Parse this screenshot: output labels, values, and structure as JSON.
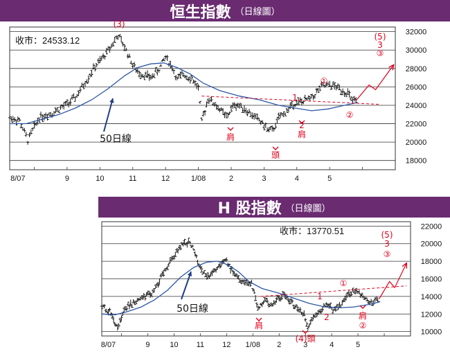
{
  "chart_data": [
    {
      "type": "ohlc",
      "title": "恒生指數",
      "subtitle": "（日線圖）",
      "close_label": "收市：24533.12",
      "ylim": [
        17000,
        32500
      ],
      "yticks": [
        18000,
        20000,
        22000,
        24000,
        26000,
        28000,
        30000,
        32000
      ],
      "xlabels": [
        {
          "label": "8/07",
          "m": 0.25
        },
        {
          "label": "9",
          "m": 1.75
        },
        {
          "label": "10",
          "m": 2.75
        },
        {
          "label": "11",
          "m": 3.75
        },
        {
          "label": "12",
          "m": 4.75
        },
        {
          "label": "1/08",
          "m": 5.75
        },
        {
          "label": "2",
          "m": 6.75
        },
        {
          "label": "3",
          "m": 7.75
        },
        {
          "label": "4",
          "m": 8.75
        },
        {
          "label": "5",
          "m": 9.75
        }
      ],
      "price": [
        [
          0,
          22700
        ],
        [
          0.3,
          22300
        ],
        [
          0.55,
          20200
        ],
        [
          0.9,
          22700
        ],
        [
          1.3,
          23200
        ],
        [
          1.7,
          24000
        ],
        [
          2.0,
          24800
        ],
        [
          2.3,
          26500
        ],
        [
          2.6,
          28200
        ],
        [
          2.85,
          29200
        ],
        [
          3.1,
          30500
        ],
        [
          3.3,
          31600
        ],
        [
          3.55,
          30000
        ],
        [
          3.75,
          28400
        ],
        [
          3.9,
          27600
        ],
        [
          4.1,
          27300
        ],
        [
          4.3,
          27000
        ],
        [
          4.55,
          27900
        ],
        [
          4.75,
          29300
        ],
        [
          4.95,
          28100
        ],
        [
          5.1,
          26800
        ],
        [
          5.3,
          27400
        ],
        [
          5.55,
          26900
        ],
        [
          5.75,
          25900
        ],
        [
          5.85,
          22200
        ],
        [
          6.05,
          24800
        ],
        [
          6.4,
          23600
        ],
        [
          6.6,
          22700
        ],
        [
          6.85,
          24100
        ],
        [
          7.1,
          23800
        ],
        [
          7.4,
          22900
        ],
        [
          7.6,
          22400
        ],
        [
          7.85,
          21400
        ],
        [
          8.0,
          21200
        ],
        [
          8.2,
          22600
        ],
        [
          8.45,
          23400
        ],
        [
          8.65,
          24200
        ],
        [
          8.9,
          24400
        ],
        [
          9.2,
          24800
        ],
        [
          9.5,
          26000
        ],
        [
          9.75,
          26200
        ],
        [
          10.0,
          25900
        ],
        [
          10.3,
          25300
        ],
        [
          10.45,
          24400
        ],
        [
          10.6,
          24450
        ]
      ],
      "ma50": [
        [
          0,
          22000
        ],
        [
          0.5,
          22000
        ],
        [
          1,
          22500
        ],
        [
          1.5,
          23000
        ],
        [
          2,
          23700
        ],
        [
          2.5,
          24600
        ],
        [
          3,
          25800
        ],
        [
          3.5,
          27200
        ],
        [
          3.9,
          28100
        ],
        [
          4.3,
          28500
        ],
        [
          4.7,
          28600
        ],
        [
          5.1,
          28100
        ],
        [
          5.5,
          27400
        ],
        [
          5.9,
          26400
        ],
        [
          6.4,
          25600
        ],
        [
          7,
          25000
        ],
        [
          7.6,
          24600
        ],
        [
          8.2,
          24000
        ],
        [
          8.7,
          23700
        ],
        [
          9.2,
          23400
        ],
        [
          9.7,
          23600
        ],
        [
          10.2,
          24000
        ],
        [
          10.6,
          24300
        ]
      ],
      "neckline": {
        "from": [
          5.85,
          25000
        ],
        "to": [
          11.3,
          24100
        ]
      },
      "projection": [
        [
          10.55,
          24500
        ],
        [
          10.95,
          26200
        ],
        [
          11.15,
          25700
        ],
        [
          11.7,
          28400
        ]
      ],
      "ma_label": "50日線",
      "labels": {
        "peak3": "(3)",
        "wave5": "(5)",
        "wave5_sub": "3",
        "circle3": "③",
        "circle1": "①",
        "circle2": "②",
        "wave1": "1",
        "wave2": "2",
        "shoulder_left": "肩",
        "shoulder_right": "肩",
        "head": "頭"
      }
    },
    {
      "type": "ohlc",
      "title": "H 股指數",
      "subtitle": "（日線圖）",
      "close_label": "收市：13770.51",
      "ylim": [
        9500,
        22500
      ],
      "yticks": [
        10000,
        12000,
        14000,
        16000,
        18000,
        20000,
        22000
      ],
      "xlabels": [
        {
          "label": "8/07",
          "m": 0.25
        },
        {
          "label": "9",
          "m": 1.75
        },
        {
          "label": "10",
          "m": 2.75
        },
        {
          "label": "11",
          "m": 3.75
        },
        {
          "label": "12",
          "m": 4.75
        },
        {
          "label": "1/08",
          "m": 5.75
        },
        {
          "label": "2",
          "m": 6.75
        },
        {
          "label": "3",
          "m": 7.75
        },
        {
          "label": "4",
          "m": 8.75
        },
        {
          "label": "5",
          "m": 9.75
        }
      ],
      "price": [
        [
          0,
          12800
        ],
        [
          0.3,
          12300
        ],
        [
          0.6,
          10400
        ],
        [
          0.9,
          12700
        ],
        [
          1.3,
          13500
        ],
        [
          1.7,
          14000
        ],
        [
          2.0,
          14600
        ],
        [
          2.3,
          16500
        ],
        [
          2.6,
          17900
        ],
        [
          2.85,
          19200
        ],
        [
          3.1,
          20000
        ],
        [
          3.35,
          20200
        ],
        [
          3.6,
          18500
        ],
        [
          3.85,
          16700
        ],
        [
          4.05,
          16200
        ],
        [
          4.3,
          16900
        ],
        [
          4.55,
          17600
        ],
        [
          4.75,
          18000
        ],
        [
          4.95,
          16900
        ],
        [
          5.2,
          16000
        ],
        [
          5.45,
          15500
        ],
        [
          5.7,
          15400
        ],
        [
          5.95,
          12600
        ],
        [
          6.2,
          13500
        ],
        [
          6.45,
          12900
        ],
        [
          6.7,
          13800
        ],
        [
          6.95,
          14100
        ],
        [
          7.2,
          13400
        ],
        [
          7.45,
          12700
        ],
        [
          7.7,
          11900
        ],
        [
          7.85,
          10400
        ],
        [
          8.05,
          11600
        ],
        [
          8.3,
          12200
        ],
        [
          8.55,
          13100
        ],
        [
          8.8,
          12500
        ],
        [
          9.1,
          13000
        ],
        [
          9.4,
          14200
        ],
        [
          9.65,
          14700
        ],
        [
          9.9,
          14300
        ],
        [
          10.15,
          13200
        ],
        [
          10.35,
          13300
        ],
        [
          10.55,
          13700
        ]
      ],
      "ma50": [
        [
          0,
          12000
        ],
        [
          0.5,
          11900
        ],
        [
          1,
          12300
        ],
        [
          1.5,
          12800
        ],
        [
          2,
          13600
        ],
        [
          2.5,
          14700
        ],
        [
          3,
          16200
        ],
        [
          3.5,
          17300
        ],
        [
          4,
          17900
        ],
        [
          4.4,
          18000
        ],
        [
          4.8,
          17600
        ],
        [
          5.2,
          16800
        ],
        [
          5.6,
          15700
        ],
        [
          6.1,
          14900
        ],
        [
          6.7,
          14400
        ],
        [
          7.3,
          13800
        ],
        [
          7.9,
          13200
        ],
        [
          8.5,
          12800
        ],
        [
          9.0,
          12700
        ],
        [
          9.6,
          12800
        ],
        [
          10.2,
          13100
        ],
        [
          10.6,
          13400
        ]
      ],
      "neckline": {
        "from": [
          6.05,
          14000
        ],
        "to": [
          11.6,
          15200
        ]
      },
      "projection": [
        [
          10.55,
          13700
        ],
        [
          10.95,
          15700
        ],
        [
          11.15,
          15000
        ],
        [
          11.6,
          17800
        ]
      ],
      "ma_label": "50日線",
      "labels": {
        "wave5": "(5)",
        "wave5_sub": "3",
        "circle3": "③",
        "circle1": "①",
        "circle2": "②",
        "wave1": "1",
        "wave2": "2",
        "shoulder_left": "肩",
        "shoulder_right": "肩",
        "head": "(4)頭"
      }
    }
  ]
}
